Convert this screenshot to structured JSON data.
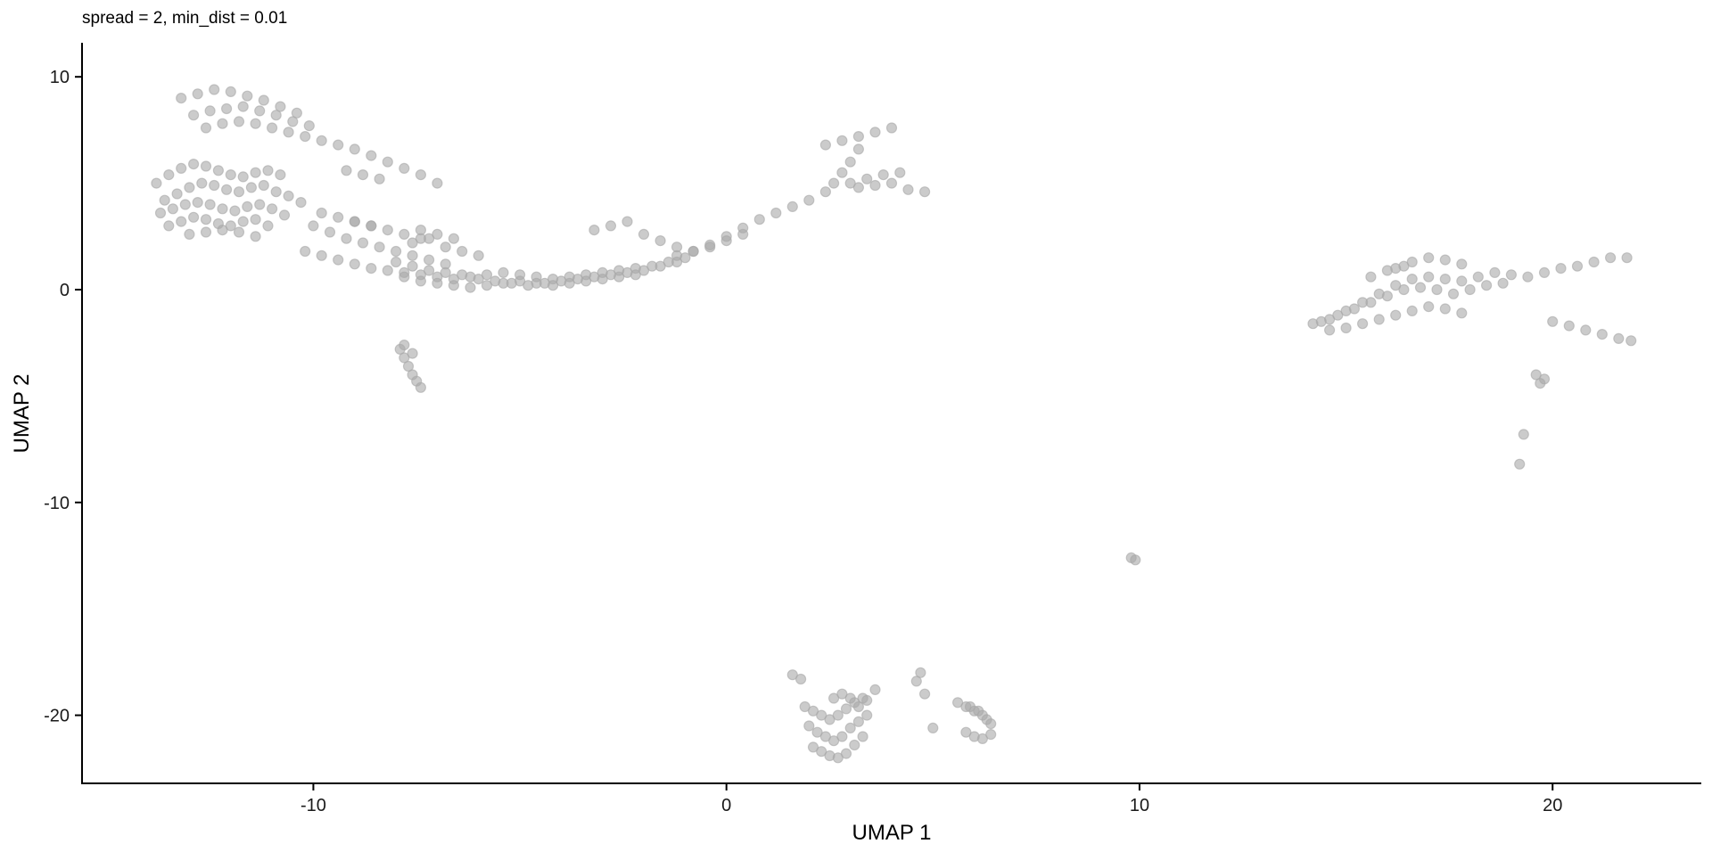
{
  "chart_data": {
    "type": "scatter",
    "title": "spread = 2, min_dist = 0.01",
    "xlabel": "UMAP 1",
    "ylabel": "UMAP 2",
    "xlim": [
      -15.6,
      23.6
    ],
    "ylim": [
      -23.2,
      11.6
    ],
    "xticks": [
      -10,
      0,
      10,
      20
    ],
    "yticks": [
      -20,
      -10,
      0,
      10
    ],
    "xtick_labels": [
      "-10",
      "0",
      "10",
      "20"
    ],
    "ytick_labels": [
      "-20",
      "-10",
      "0",
      "10"
    ],
    "grid": false,
    "legend": "none",
    "point_color": "#a9a9a9",
    "series": [
      {
        "x": [
          -13.2,
          -12.8,
          -12.4,
          -12.0,
          -11.6,
          -11.2,
          -10.8,
          -10.4,
          -12.9,
          -12.5,
          -12.1,
          -11.7,
          -11.3,
          -10.9,
          -10.5,
          -10.1,
          -12.6,
          -12.2,
          -11.8,
          -11.4,
          -11.0,
          -10.6,
          -10.2,
          -9.8,
          -9.4,
          -9.0,
          -8.6,
          -8.2,
          -7.8,
          -7.4,
          -7.0,
          -13.8,
          -13.5,
          -13.2,
          -12.9,
          -12.6,
          -12.3,
          -12.0,
          -11.7,
          -11.4,
          -11.1,
          -10.8,
          -13.6,
          -13.3,
          -13.0,
          -12.7,
          -12.4,
          -12.1,
          -11.8,
          -11.5,
          -11.2,
          -10.9,
          -10.6,
          -10.3,
          -13.7,
          -13.4,
          -13.1,
          -12.8,
          -12.5,
          -12.2,
          -11.9,
          -11.6,
          -11.3,
          -11.0,
          -10.7,
          -13.5,
          -13.2,
          -12.9,
          -12.6,
          -12.3,
          -12.0,
          -11.7,
          -11.4,
          -11.1,
          -13.0,
          -12.6,
          -12.2,
          -11.8,
          -11.4,
          -10.0,
          -9.6,
          -9.2,
          -8.8,
          -8.4,
          -8.0,
          -7.6,
          -7.2,
          -6.8,
          -9.8,
          -9.4,
          -9.0,
          -8.6,
          -10.2,
          -9.8,
          -9.4,
          -9.0,
          -8.6,
          -8.2,
          -7.8,
          -7.4,
          -7.0,
          -6.6,
          -6.2,
          -5.8,
          -5.4,
          -5.0,
          -4.6,
          -4.2,
          -3.8,
          -3.4,
          -3.0,
          -2.6,
          -2.2,
          -1.8,
          -1.4,
          -1.0,
          -8.0,
          -7.6,
          -7.2,
          -6.8,
          -6.4,
          -6.0,
          -5.6,
          -5.2,
          -4.8,
          -4.4,
          -4.0,
          -3.6,
          -3.2,
          -2.8,
          -2.4,
          -2.0,
          -1.6,
          -1.2,
          -7.8,
          -7.4,
          -7.0,
          -6.6,
          -6.2,
          -5.8,
          -5.4,
          -5.0,
          -4.6,
          -4.2,
          -3.8,
          -3.4,
          -3.0,
          -2.6,
          -2.2,
          -7.6,
          -7.2,
          -6.8,
          -6.4,
          -6.0,
          -7.4,
          -7.0,
          -6.6,
          -9.0,
          -8.6,
          -8.2,
          -7.8,
          -7.4,
          -9.2,
          -8.8,
          -8.4,
          -3.2,
          -2.8,
          -2.4,
          -2.0,
          -1.6,
          -1.2,
          -0.8,
          -0.4,
          0.0,
          0.4,
          -1.2,
          -0.8,
          -0.4,
          0.0,
          0.4,
          0.8,
          1.2,
          1.6,
          2.0,
          2.4,
          2.6,
          2.8,
          3.0,
          3.2,
          2.4,
          2.8,
          3.2,
          3.6,
          4.0,
          3.0,
          3.4,
          3.8,
          4.2,
          3.2,
          3.6,
          4.0,
          4.4,
          4.8,
          -7.9,
          -7.8,
          -7.7,
          -7.6,
          -7.5,
          -7.4,
          -7.8,
          -7.6,
          1.9,
          2.1,
          2.3,
          2.5,
          2.7,
          2.9,
          3.1,
          3.3,
          2.0,
          2.2,
          2.4,
          2.6,
          2.8,
          3.0,
          3.2,
          3.4,
          2.1,
          2.3,
          2.5,
          2.7,
          2.9,
          3.1,
          3.3,
          2.6,
          2.8,
          3.0,
          3.2,
          3.4,
          3.6,
          4.6,
          4.8,
          4.7,
          5.0,
          5.6,
          5.8,
          6.0,
          6.2,
          6.4,
          5.8,
          6.0,
          6.2,
          6.4,
          5.9,
          6.1,
          6.3,
          1.6,
          1.8,
          9.8,
          9.9,
          14.2,
          14.6,
          15.0,
          15.4,
          15.8,
          16.2,
          16.6,
          17.0,
          17.4,
          17.8,
          18.2,
          18.6,
          19.0,
          19.4,
          19.8,
          20.2,
          20.6,
          21.0,
          21.4,
          21.8,
          14.4,
          14.8,
          15.2,
          15.6,
          16.0,
          16.4,
          16.8,
          17.2,
          17.6,
          18.0,
          18.4,
          18.8,
          14.6,
          15.0,
          15.4,
          15.8,
          16.2,
          16.6,
          17.0,
          17.4,
          17.8,
          16.2,
          16.6,
          17.0,
          17.4,
          17.8,
          15.6,
          16.0,
          16.4,
          20.0,
          20.4,
          20.8,
          21.2,
          21.6,
          21.9,
          19.6,
          19.7,
          19.8,
          19.3,
          19.2
        ],
        "y": [
          9.0,
          9.2,
          9.4,
          9.3,
          9.1,
          8.9,
          8.6,
          8.3,
          8.2,
          8.4,
          8.5,
          8.6,
          8.4,
          8.2,
          7.9,
          7.7,
          7.6,
          7.8,
          7.9,
          7.8,
          7.6,
          7.4,
          7.2,
          7.0,
          6.8,
          6.6,
          6.3,
          6.0,
          5.7,
          5.4,
          5.0,
          5.0,
          5.4,
          5.7,
          5.9,
          5.8,
          5.6,
          5.4,
          5.3,
          5.5,
          5.6,
          5.4,
          4.2,
          4.5,
          4.8,
          5.0,
          4.9,
          4.7,
          4.6,
          4.8,
          4.9,
          4.6,
          4.4,
          4.1,
          3.6,
          3.8,
          4.0,
          4.1,
          4.0,
          3.8,
          3.7,
          3.9,
          4.0,
          3.8,
          3.5,
          3.0,
          3.2,
          3.4,
          3.3,
          3.1,
          3.0,
          3.2,
          3.3,
          3.0,
          2.6,
          2.7,
          2.8,
          2.7,
          2.5,
          3.0,
          2.7,
          2.4,
          2.2,
          2.0,
          1.8,
          1.6,
          1.4,
          1.2,
          3.6,
          3.4,
          3.2,
          3.0,
          1.8,
          1.6,
          1.4,
          1.2,
          1.0,
          0.9,
          0.8,
          0.7,
          0.6,
          0.5,
          0.6,
          0.7,
          0.8,
          0.7,
          0.6,
          0.5,
          0.6,
          0.7,
          0.8,
          0.9,
          1.0,
          1.1,
          1.3,
          1.5,
          1.3,
          1.1,
          0.9,
          0.8,
          0.7,
          0.5,
          0.4,
          0.3,
          0.2,
          0.3,
          0.4,
          0.5,
          0.6,
          0.7,
          0.8,
          0.9,
          1.1,
          1.3,
          0.6,
          0.4,
          0.3,
          0.2,
          0.1,
          0.2,
          0.3,
          0.4,
          0.3,
          0.2,
          0.3,
          0.4,
          0.5,
          0.6,
          0.7,
          2.2,
          2.4,
          2.0,
          1.8,
          1.6,
          2.8,
          2.6,
          2.4,
          3.2,
          3.0,
          2.8,
          2.6,
          2.4,
          5.6,
          5.4,
          5.2,
          2.8,
          3.0,
          3.2,
          2.6,
          2.3,
          2.0,
          1.8,
          2.0,
          2.3,
          2.6,
          1.6,
          1.8,
          2.1,
          2.5,
          2.9,
          3.3,
          3.6,
          3.9,
          4.2,
          4.6,
          5.0,
          5.5,
          6.0,
          6.6,
          6.8,
          7.0,
          7.2,
          7.4,
          7.6,
          5.0,
          5.2,
          5.4,
          5.5,
          4.8,
          4.9,
          5.0,
          4.7,
          4.6,
          -2.8,
          -3.2,
          -3.6,
          -4.0,
          -4.3,
          -4.6,
          -2.6,
          -3.0,
          -19.6,
          -19.8,
          -20.0,
          -20.2,
          -20.0,
          -19.7,
          -19.4,
          -19.2,
          -20.5,
          -20.8,
          -21.0,
          -21.2,
          -21.0,
          -20.6,
          -20.3,
          -20.0,
          -21.5,
          -21.7,
          -21.9,
          -22.0,
          -21.8,
          -21.4,
          -21.0,
          -19.2,
          -19.0,
          -19.2,
          -19.6,
          -19.3,
          -18.8,
          -18.4,
          -19.0,
          -18.0,
          -20.6,
          -19.4,
          -19.6,
          -19.8,
          -20.0,
          -20.4,
          -20.8,
          -21.0,
          -21.1,
          -20.9,
          -19.6,
          -19.8,
          -20.2,
          -18.1,
          -18.3,
          -12.6,
          -12.7,
          -1.6,
          -1.4,
          -1.0,
          -0.6,
          -0.2,
          0.2,
          0.5,
          0.6,
          0.5,
          0.4,
          0.6,
          0.8,
          0.7,
          0.6,
          0.8,
          1.0,
          1.1,
          1.3,
          1.5,
          1.5,
          -1.5,
          -1.2,
          -0.9,
          -0.6,
          -0.3,
          0.0,
          0.1,
          0.0,
          -0.2,
          0.0,
          0.2,
          0.3,
          -1.9,
          -1.8,
          -1.6,
          -1.4,
          -1.2,
          -1.0,
          -0.8,
          -0.9,
          -1.1,
          1.0,
          1.3,
          1.5,
          1.4,
          1.2,
          0.6,
          0.9,
          1.1,
          -1.5,
          -1.7,
          -1.9,
          -2.1,
          -2.3,
          -2.4,
          -4.0,
          -4.4,
          -4.2,
          -6.8,
          -8.2
        ]
      }
    ]
  }
}
